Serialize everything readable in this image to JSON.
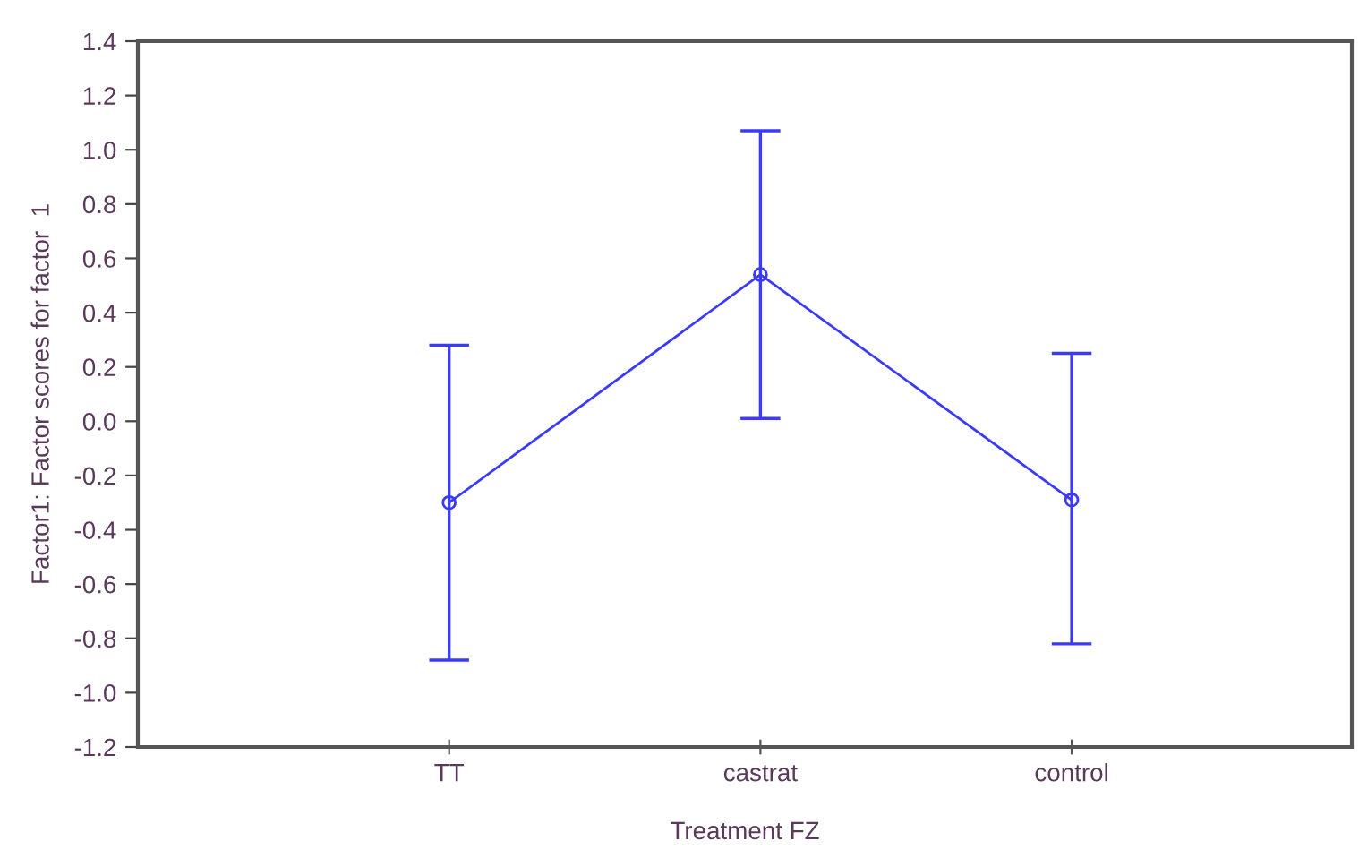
{
  "chart_data": {
    "type": "line",
    "xlabel": "Treatment FZ",
    "ylabel": "Factor1: Factor scores for factor  1",
    "categories": [
      "TT",
      "castrat",
      "control"
    ],
    "series": [
      {
        "color": "#3a3aff",
        "values": [
          -0.3,
          0.54,
          -0.29
        ],
        "errors": [
          [
            -0.88,
            0.28
          ],
          [
            0.01,
            1.07
          ],
          [
            -0.82,
            0.25
          ]
        ]
      }
    ],
    "ylim": [
      -1.2,
      1.4
    ],
    "yticks": [
      {
        "value": 1.4,
        "label": "1.4"
      },
      {
        "value": 1.2,
        "label": "1.2"
      },
      {
        "value": 1.0,
        "label": "1.0"
      },
      {
        "value": 0.8,
        "label": "0.8"
      },
      {
        "value": 0.6,
        "label": "0.6"
      },
      {
        "value": 0.4,
        "label": "0.4"
      },
      {
        "value": 0.2,
        "label": "0.2"
      },
      {
        "value": 0.0,
        "label": "0.0"
      },
      {
        "value": -0.2,
        "label": "-0.2"
      },
      {
        "value": -0.4,
        "label": "-0.4"
      },
      {
        "value": -0.6,
        "label": "-0.6"
      },
      {
        "value": -0.8,
        "label": "-0.8"
      },
      {
        "value": -1.0,
        "label": "-1.0"
      },
      {
        "value": -1.2,
        "label": "-1.2"
      }
    ],
    "marker": "circle",
    "line_style": "solid",
    "grid": false,
    "legend": false
  }
}
